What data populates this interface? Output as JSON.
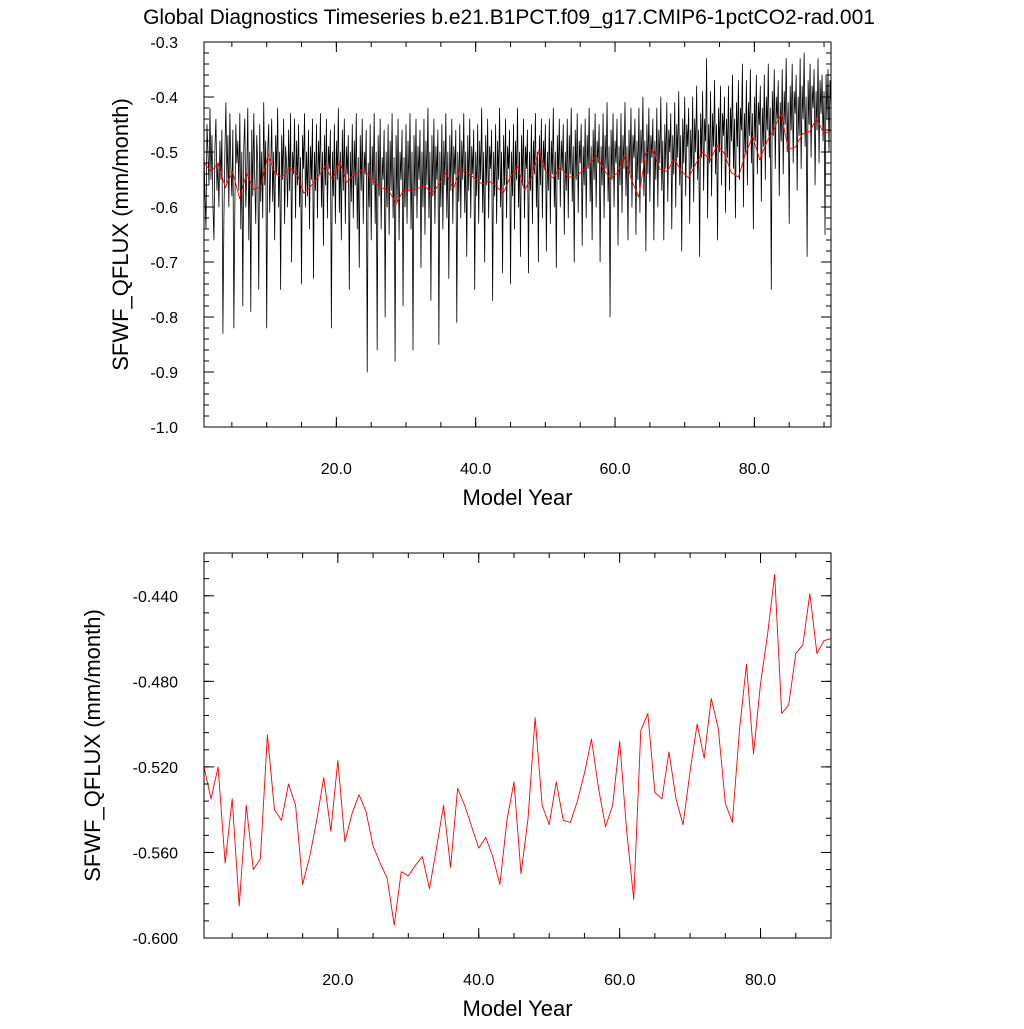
{
  "title": "Global Diagnostics Timeseries b.e21.B1PCT.f09_g17.CMIP6-1pctCO2-rad.001",
  "chart_data": [
    {
      "type": "line",
      "xlabel": "Model Year",
      "ylabel": "SFWF_QFLUX (mm/month)",
      "xlim": [
        1,
        91
      ],
      "ylim": [
        -1.0,
        -0.3
      ],
      "x_ticks": [
        20,
        40,
        60,
        80
      ],
      "x_tick_labels": [
        "20.0",
        "40.0",
        "60.0",
        "80.0"
      ],
      "y_ticks": [
        -1.0,
        -0.9,
        -0.8,
        -0.7,
        -0.6,
        -0.5,
        -0.4,
        -0.3
      ],
      "y_tick_labels": [
        "-1.0",
        "-0.9",
        "-0.8",
        "-0.7",
        "-0.6",
        "-0.5",
        "-0.4",
        "-0.3"
      ],
      "grid": false,
      "series": [
        {
          "color": "#000000",
          "values": [
            -0.5,
            -0.58,
            -0.64,
            -0.45,
            -0.5,
            -0.56,
            -0.42,
            -0.55,
            -0.47,
            -0.6,
            -0.66,
            -0.49,
            -0.44,
            -0.57,
            -0.52,
            -0.6,
            -0.48,
            -0.55,
            -0.46,
            -0.83,
            -0.62,
            -0.5,
            -0.41,
            -0.56,
            -0.47,
            -0.6,
            -0.43,
            -0.53,
            -0.58,
            -0.46,
            -0.82,
            -0.6,
            -0.45,
            -0.52,
            -0.48,
            -0.57,
            -0.43,
            -0.64,
            -0.5,
            -0.78,
            -0.49,
            -0.44,
            -0.6,
            -0.54,
            -0.42,
            -0.66,
            -0.5,
            -0.79,
            -0.46,
            -0.58,
            -0.43,
            -0.55,
            -0.63,
            -0.47,
            -0.52,
            -0.75,
            -0.45,
            -0.59,
            -0.5,
            -0.62,
            -0.41,
            -0.56,
            -0.48,
            -0.82,
            -0.5,
            -0.45,
            -0.61,
            -0.53,
            -0.44,
            -0.59,
            -0.5,
            -0.66,
            -0.47,
            -0.54,
            -0.42,
            -0.6,
            -0.5,
            -0.75,
            -0.47,
            -0.55,
            -0.44,
            -0.63,
            -0.49,
            -0.52,
            -0.6,
            -0.46,
            -0.57,
            -0.43,
            -0.7,
            -0.5,
            -0.54,
            -0.44,
            -0.62,
            -0.48,
            -0.56,
            -0.45,
            -0.6,
            -0.51,
            -0.74,
            -0.47,
            -0.53,
            -0.43,
            -0.6,
            -0.5,
            -0.58,
            -0.46,
            -0.64,
            -0.49,
            -0.55,
            -0.44,
            -0.73,
            -0.5,
            -0.57,
            -0.45,
            -0.62,
            -0.48,
            -0.54,
            -0.43,
            -0.6,
            -0.5,
            -0.67,
            -0.47,
            -0.56,
            -0.44,
            -0.62,
            -0.49,
            -0.53,
            -0.46,
            -0.82,
            -0.5,
            -0.58,
            -0.45,
            -0.63,
            -0.48,
            -0.55,
            -0.42,
            -0.61,
            -0.5,
            -0.66,
            -0.46,
            -0.57,
            -0.44,
            -0.63,
            -0.49,
            -0.54,
            -0.47,
            -0.75,
            -0.5,
            -0.59,
            -0.45,
            -0.62,
            -0.48,
            -0.56,
            -0.43,
            -0.64,
            -0.51,
            -0.71,
            -0.47,
            -0.57,
            -0.44,
            -0.63,
            -0.5,
            -0.54,
            -0.46,
            -0.9,
            -0.52,
            -0.6,
            -0.45,
            -0.66,
            -0.49,
            -0.56,
            -0.43,
            -0.63,
            -0.5,
            -0.86,
            -0.47,
            -0.58,
            -0.44,
            -0.64,
            -0.51,
            -0.55,
            -0.46,
            -0.8,
            -0.5,
            -0.6,
            -0.45,
            -0.65,
            -0.48,
            -0.57,
            -0.43,
            -0.62,
            -0.51,
            -0.88,
            -0.47,
            -0.59,
            -0.44,
            -0.66,
            -0.5,
            -0.55,
            -0.46,
            -0.78,
            -0.51,
            -0.6,
            -0.45,
            -0.63,
            -0.48,
            -0.57,
            -0.43,
            -0.64,
            -0.5,
            -0.86,
            -0.47,
            -0.58,
            -0.44,
            -0.62,
            -0.49,
            -0.55,
            -0.46,
            -0.71,
            -0.5,
            -0.6,
            -0.44,
            -0.65,
            -0.48,
            -0.56,
            -0.42,
            -0.62,
            -0.5,
            -0.77,
            -0.47,
            -0.58,
            -0.44,
            -0.63,
            -0.49,
            -0.55,
            -0.46,
            -0.85,
            -0.5,
            -0.6,
            -0.45,
            -0.64,
            -0.48,
            -0.56,
            -0.43,
            -0.62,
            -0.5,
            -0.73,
            -0.47,
            -0.57,
            -0.44,
            -0.63,
            -0.49,
            -0.54,
            -0.46,
            -0.81,
            -0.5,
            -0.59,
            -0.45,
            -0.62,
            -0.48,
            -0.55,
            -0.43,
            -0.61,
            -0.5,
            -0.69,
            -0.47,
            -0.57,
            -0.44,
            -0.62,
            -0.49,
            -0.54,
            -0.46,
            -0.75,
            -0.5,
            -0.58,
            -0.45,
            -0.63,
            -0.48,
            -0.55,
            -0.42,
            -0.61,
            -0.5,
            -0.7,
            -0.47,
            -0.56,
            -0.44,
            -0.62,
            -0.49,
            -0.53,
            -0.46,
            -0.77,
            -0.5,
            -0.58,
            -0.45,
            -0.63,
            -0.48,
            -0.55,
            -0.42,
            -0.6,
            -0.5,
            -0.72,
            -0.47,
            -0.56,
            -0.44,
            -0.62,
            -0.49,
            -0.53,
            -0.46,
            -0.74,
            -0.5,
            -0.58,
            -0.45,
            -0.64,
            -0.48,
            -0.55,
            -0.42,
            -0.6,
            -0.5,
            -0.69,
            -0.47,
            -0.56,
            -0.44,
            -0.62,
            -0.49,
            -0.53,
            -0.46,
            -0.72,
            -0.5,
            -0.57,
            -0.45,
            -0.63,
            -0.48,
            -0.54,
            -0.43,
            -0.6,
            -0.5,
            -0.7,
            -0.47,
            -0.56,
            -0.44,
            -0.62,
            -0.48,
            -0.53,
            -0.45,
            -0.68,
            -0.5,
            -0.57,
            -0.44,
            -0.63,
            -0.48,
            -0.54,
            -0.42,
            -0.6,
            -0.5,
            -0.71,
            -0.47,
            -0.55,
            -0.44,
            -0.6,
            -0.48,
            -0.53,
            -0.45,
            -0.65,
            -0.5,
            -0.57,
            -0.44,
            -0.62,
            -0.47,
            -0.54,
            -0.42,
            -0.59,
            -0.49,
            -0.7,
            -0.46,
            -0.55,
            -0.43,
            -0.61,
            -0.48,
            -0.52,
            -0.45,
            -0.67,
            -0.49,
            -0.56,
            -0.44,
            -0.62,
            -0.47,
            -0.53,
            -0.42,
            -0.59,
            -0.49,
            -0.66,
            -0.46,
            -0.55,
            -0.43,
            -0.6,
            -0.48,
            -0.52,
            -0.45,
            -0.7,
            -0.49,
            -0.56,
            -0.43,
            -0.62,
            -0.47,
            -0.53,
            -0.41,
            -0.59,
            -0.49,
            -0.8,
            -0.46,
            -0.55,
            -0.43,
            -0.6,
            -0.48,
            -0.52,
            -0.44,
            -0.67,
            -0.49,
            -0.56,
            -0.43,
            -0.61,
            -0.47,
            -0.53,
            -0.41,
            -0.58,
            -0.49,
            -0.66,
            -0.46,
            -0.54,
            -0.42,
            -0.6,
            -0.47,
            -0.51,
            -0.44,
            -0.65,
            -0.48,
            -0.55,
            -0.42,
            -0.61,
            -0.46,
            -0.52,
            -0.4,
            -0.58,
            -0.48,
            -0.68,
            -0.45,
            -0.54,
            -0.42,
            -0.59,
            -0.47,
            -0.51,
            -0.44,
            -0.66,
            -0.48,
            -0.55,
            -0.42,
            -0.6,
            -0.46,
            -0.52,
            -0.4,
            -0.57,
            -0.48,
            -0.66,
            -0.45,
            -0.53,
            -0.41,
            -0.59,
            -0.46,
            -0.5,
            -0.43,
            -0.64,
            -0.47,
            -0.54,
            -0.41,
            -0.6,
            -0.45,
            -0.51,
            -0.39,
            -0.56,
            -0.47,
            -0.68,
            -0.44,
            -0.52,
            -0.4,
            -0.58,
            -0.45,
            -0.49,
            -0.42,
            -0.63,
            -0.46,
            -0.53,
            -0.4,
            -0.59,
            -0.44,
            -0.5,
            -0.38,
            -0.55,
            -0.46,
            -0.69,
            -0.43,
            -0.51,
            -0.39,
            -0.57,
            -0.44,
            -0.48,
            -0.33,
            -0.62,
            -0.45,
            -0.52,
            -0.39,
            -0.58,
            -0.43,
            -0.49,
            -0.37,
            -0.54,
            -0.45,
            -0.66,
            -0.42,
            -0.5,
            -0.38,
            -0.56,
            -0.43,
            -0.47,
            -0.4,
            -0.61,
            -0.44,
            -0.51,
            -0.38,
            -0.57,
            -0.42,
            -0.48,
            -0.36,
            -0.53,
            -0.44,
            -0.62,
            -0.41,
            -0.49,
            -0.37,
            -0.55,
            -0.42,
            -0.46,
            -0.34,
            -0.6,
            -0.43,
            -0.5,
            -0.37,
            -0.56,
            -0.41,
            -0.47,
            -0.35,
            -0.52,
            -0.43,
            -0.64,
            -0.4,
            -0.48,
            -0.36,
            -0.54,
            -0.41,
            -0.45,
            -0.38,
            -0.59,
            -0.42,
            -0.49,
            -0.36,
            -0.55,
            -0.4,
            -0.46,
            -0.34,
            -0.51,
            -0.42,
            -0.75,
            -0.39,
            -0.47,
            -0.35,
            -0.53,
            -0.4,
            -0.44,
            -0.37,
            -0.58,
            -0.41,
            -0.48,
            -0.35,
            -0.54,
            -0.39,
            -0.45,
            -0.33,
            -0.5,
            -0.41,
            -0.63,
            -0.38,
            -0.46,
            -0.34,
            -0.52,
            -0.39,
            -0.43,
            -0.36,
            -0.57,
            -0.4,
            -0.47,
            -0.33,
            -0.53,
            -0.38,
            -0.44,
            -0.32,
            -0.49,
            -0.4,
            -0.69,
            -0.37,
            -0.45,
            -0.34,
            -0.51,
            -0.38,
            -0.42,
            -0.35,
            -0.56,
            -0.39,
            -0.46,
            -0.33,
            -0.52,
            -0.37,
            -0.43,
            -0.36,
            -0.48,
            -0.39,
            -0.65,
            -0.36,
            -0.44,
            -0.35,
            -0.5,
            -0.37,
            -0.42
          ]
        },
        {
          "color": "#ff0000",
          "name": "",
          "values": [
            -0.52,
            -0.535,
            -0.52,
            -0.565,
            -0.535,
            -0.585,
            -0.538,
            -0.568,
            -0.563,
            -0.505,
            -0.54,
            -0.545,
            -0.528,
            -0.538,
            -0.575,
            -0.562,
            -0.545,
            -0.525,
            -0.55,
            -0.517,
            -0.555,
            -0.542,
            -0.533,
            -0.541,
            -0.557,
            -0.565,
            -0.572,
            -0.594,
            -0.569,
            -0.571,
            -0.566,
            -0.562,
            -0.577,
            -0.558,
            -0.538,
            -0.567,
            -0.53,
            -0.538,
            -0.548,
            -0.558,
            -0.553,
            -0.562,
            -0.575,
            -0.545,
            -0.527,
            -0.57,
            -0.544,
            -0.497,
            -0.538,
            -0.547,
            -0.527,
            -0.545,
            -0.546,
            -0.536,
            -0.523,
            -0.507,
            -0.53,
            -0.548,
            -0.538,
            -0.508,
            -0.55,
            -0.582,
            -0.503,
            -0.495,
            -0.532,
            -0.535,
            -0.513,
            -0.535,
            -0.547,
            -0.522,
            -0.5,
            -0.516,
            -0.488,
            -0.502,
            -0.537,
            -0.546,
            -0.503,
            -0.472,
            -0.514,
            -0.481,
            -0.458,
            -0.43,
            -0.495,
            -0.491,
            -0.467,
            -0.463,
            -0.439,
            -0.467,
            -0.461
          ]
        }
      ]
    },
    {
      "type": "line",
      "xlabel": "Model Year",
      "ylabel": "SFWF_QFLUX (mm/month)",
      "xlim": [
        1,
        90
      ],
      "ylim": [
        -0.6,
        -0.42
      ],
      "x_ticks": [
        20,
        40,
        60,
        80
      ],
      "x_tick_labels": [
        "20.0",
        "40.0",
        "60.0",
        "80.0"
      ],
      "y_ticks": [
        -0.6,
        -0.56,
        -0.52,
        -0.48,
        -0.44
      ],
      "y_tick_labels": [
        "-0.600",
        "-0.560",
        "-0.520",
        "-0.480",
        "-0.440"
      ],
      "grid": false,
      "series": [
        {
          "color": "#ff0000",
          "values": [
            -0.52,
            -0.535,
            -0.52,
            -0.565,
            -0.535,
            -0.585,
            -0.538,
            -0.568,
            -0.563,
            -0.505,
            -0.54,
            -0.545,
            -0.528,
            -0.538,
            -0.575,
            -0.562,
            -0.545,
            -0.525,
            -0.55,
            -0.517,
            -0.555,
            -0.542,
            -0.533,
            -0.541,
            -0.557,
            -0.565,
            -0.572,
            -0.594,
            -0.569,
            -0.571,
            -0.566,
            -0.562,
            -0.577,
            -0.558,
            -0.538,
            -0.567,
            -0.53,
            -0.538,
            -0.548,
            -0.558,
            -0.553,
            -0.562,
            -0.575,
            -0.545,
            -0.527,
            -0.57,
            -0.544,
            -0.497,
            -0.538,
            -0.547,
            -0.527,
            -0.545,
            -0.546,
            -0.536,
            -0.523,
            -0.507,
            -0.53,
            -0.548,
            -0.538,
            -0.508,
            -0.55,
            -0.582,
            -0.503,
            -0.495,
            -0.532,
            -0.535,
            -0.513,
            -0.535,
            -0.547,
            -0.522,
            -0.5,
            -0.516,
            -0.488,
            -0.502,
            -0.537,
            -0.546,
            -0.503,
            -0.472,
            -0.514,
            -0.481,
            -0.458,
            -0.43,
            -0.495,
            -0.491,
            -0.467,
            -0.463,
            -0.439,
            -0.467,
            -0.461,
            -0.46
          ]
        }
      ]
    }
  ]
}
